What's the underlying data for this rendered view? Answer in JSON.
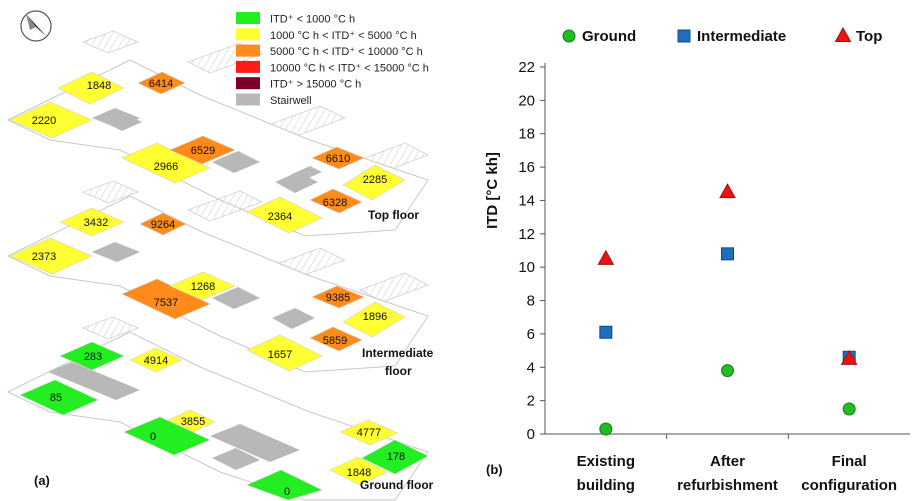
{
  "panel_a": {
    "label": "(a)",
    "legend": [
      {
        "text": "ITD⁺ < 1000 °C h",
        "color": "#22ee22"
      },
      {
        "text": "1000 °C h < ITD⁺ < 5000 °C h",
        "color": "#ffff33"
      },
      {
        "text": "5000 °C h < ITD⁺ < 10000 °C h",
        "color": "#ff8c1a"
      },
      {
        "text": "10000 °C h < ITD⁺ < 15000 °C h",
        "color": "#ff1a1a"
      },
      {
        "text": "ITD⁺ > 15000 °C h",
        "color": "#7a0026"
      },
      {
        "text": "Stairwell",
        "color": "#b8b8b8"
      }
    ],
    "floors": [
      {
        "name": "Top floor",
        "zones": [
          {
            "value": "1848",
            "color": "#ffff33"
          },
          {
            "value": "6414",
            "color": "#ff8c1a"
          },
          {
            "value": "2220",
            "color": "#ffff33"
          },
          {
            "value": "2966",
            "color": "#ffff33"
          },
          {
            "value": "6529",
            "color": "#ff8c1a"
          },
          {
            "value": "6610",
            "color": "#ff8c1a"
          },
          {
            "value": "2285",
            "color": "#ffff33"
          },
          {
            "value": "6328",
            "color": "#ff8c1a"
          },
          {
            "value": "2364",
            "color": "#ffff33"
          }
        ]
      },
      {
        "name_line1": "Intermediate",
        "name_line2": "floor",
        "zones": [
          {
            "value": "3432",
            "color": "#ffff33"
          },
          {
            "value": "9264",
            "color": "#ff8c1a"
          },
          {
            "value": "2373",
            "color": "#ffff33"
          },
          {
            "value": "7537",
            "color": "#ff8c1a"
          },
          {
            "value": "1268",
            "color": "#ffff33"
          },
          {
            "value": "9385",
            "color": "#ff8c1a"
          },
          {
            "value": "1896",
            "color": "#ffff33"
          },
          {
            "value": "5859",
            "color": "#ff8c1a"
          },
          {
            "value": "1657",
            "color": "#ffff33"
          }
        ]
      },
      {
        "name": "Ground floor",
        "zones": [
          {
            "value": "283",
            "color": "#22ee22"
          },
          {
            "value": "4914",
            "color": "#ffff33"
          },
          {
            "value": "85",
            "color": "#22ee22"
          },
          {
            "value": "3855",
            "color": "#ffff33"
          },
          {
            "value": "0",
            "color": "#22ee22"
          },
          {
            "value": "4777",
            "color": "#ffff33"
          },
          {
            "value": "178",
            "color": "#22ee22"
          },
          {
            "value": "1848",
            "color": "#ffff33"
          },
          {
            "value": "0",
            "color": "#22ee22"
          }
        ]
      }
    ]
  },
  "chart_data": {
    "type": "scatter",
    "panel_label": "(b)",
    "ylabel": "ITD [°C kh]",
    "ylim": [
      0,
      22
    ],
    "yticks": [
      0,
      2,
      4,
      6,
      8,
      10,
      12,
      14,
      16,
      18,
      20,
      22
    ],
    "grid": false,
    "legend_position": "top",
    "categories": [
      {
        "line1": "Existing",
        "line2": "building"
      },
      {
        "line1": "After",
        "line2": "refurbishment"
      },
      {
        "line1": "Final",
        "line2": "configuration"
      }
    ],
    "series": [
      {
        "name": "Ground",
        "marker": "circle",
        "color": "#22bb22",
        "values": [
          0.3,
          3.8,
          1.5
        ]
      },
      {
        "name": "Intermediate",
        "marker": "square",
        "color": "#1f6fbf",
        "values": [
          6.1,
          10.8,
          4.6
        ]
      },
      {
        "name": "Top",
        "marker": "triangle",
        "color": "#ee1111",
        "values": [
          10.5,
          14.5,
          4.5
        ]
      }
    ]
  }
}
